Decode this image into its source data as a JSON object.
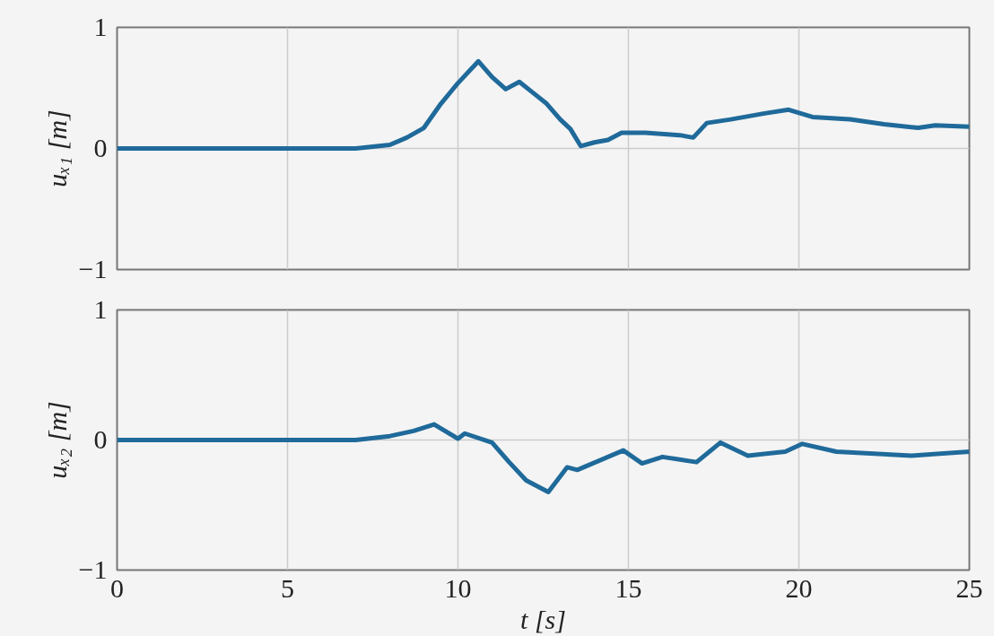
{
  "chart_data": [
    {
      "type": "line",
      "ylabel": "uₓ₁ [m]",
      "xlim": [
        0,
        25
      ],
      "ylim": [
        -1,
        1
      ],
      "xticks": [
        0,
        5,
        10,
        15,
        20,
        25
      ],
      "yticks": [
        {
          "value": -1,
          "label": "−1"
        },
        {
          "value": 0,
          "label": "0"
        },
        {
          "value": 1,
          "label": "1"
        }
      ],
      "tick_labels": "y",
      "grid": true,
      "series": [
        {
          "color": "#1f6a9a",
          "x": [
            0,
            7,
            8,
            8.5,
            9,
            9.5,
            10,
            10.6,
            11,
            11.4,
            11.8,
            12.2,
            12.6,
            13,
            13.3,
            13.6,
            14,
            14.4,
            14.8,
            15.5,
            16.5,
            16.9,
            17.3,
            18,
            19,
            19.7,
            20.4,
            21.5,
            22.5,
            23.5,
            24,
            25
          ],
          "values": [
            0,
            0,
            0.03,
            0.09,
            0.17,
            0.37,
            0.54,
            0.72,
            0.59,
            0.49,
            0.55,
            0.46,
            0.37,
            0.24,
            0.16,
            0.02,
            0.05,
            0.07,
            0.13,
            0.13,
            0.11,
            0.09,
            0.21,
            0.24,
            0.29,
            0.32,
            0.26,
            0.24,
            0.2,
            0.17,
            0.19,
            0.18
          ]
        }
      ]
    },
    {
      "type": "line",
      "xlabel": "t [s]",
      "ylabel": "uₓ₂ [m]",
      "xlim": [
        0,
        25
      ],
      "ylim": [
        -1,
        1
      ],
      "xticks": [
        0,
        5,
        10,
        15,
        20,
        25
      ],
      "yticks": [
        {
          "value": -1,
          "label": "−1"
        },
        {
          "value": 0,
          "label": "0"
        },
        {
          "value": 1,
          "label": "1"
        }
      ],
      "grid": true,
      "series": [
        {
          "color": "#1f6a9a",
          "x": [
            0,
            7,
            8,
            8.7,
            9.3,
            10,
            10.2,
            11,
            11.5,
            12,
            12.65,
            13.2,
            13.5,
            14.85,
            15.4,
            16,
            17,
            17.7,
            18.5,
            19.6,
            20.1,
            21.1,
            23.3,
            25
          ],
          "values": [
            0,
            0,
            0.03,
            0.07,
            0.12,
            0.01,
            0.05,
            -0.02,
            -0.17,
            -0.31,
            -0.4,
            -0.21,
            -0.23,
            -0.08,
            -0.18,
            -0.13,
            -0.17,
            -0.02,
            -0.12,
            -0.09,
            -0.03,
            -0.09,
            -0.12,
            -0.09
          ]
        }
      ]
    }
  ]
}
